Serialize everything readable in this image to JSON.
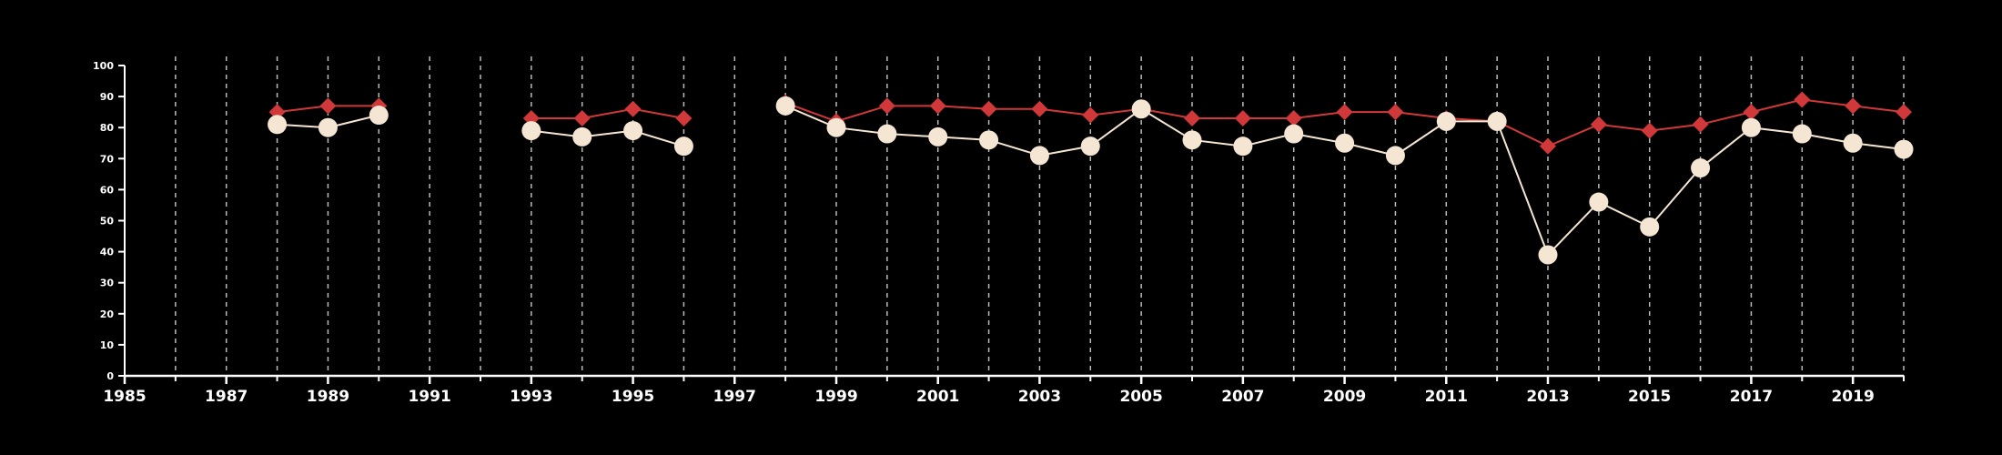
{
  "chart_data": {
    "type": "line",
    "title": "",
    "xlabel": "",
    "ylabel": "",
    "xlim": [
      1985,
      2020
    ],
    "ylim": [
      0,
      100
    ],
    "x_ticks": [
      1985,
      1987,
      1989,
      1991,
      1993,
      1995,
      1997,
      1999,
      2001,
      2003,
      2005,
      2007,
      2009,
      2011,
      2013,
      2015,
      2017,
      2019
    ],
    "y_ticks": [
      0,
      10,
      20,
      30,
      40,
      50,
      60,
      70,
      80,
      90,
      100
    ],
    "vertical_gridlines_every_year": true,
    "series": [
      {
        "marker": "diamond",
        "color": "#d0383a",
        "segments": [
          {
            "x": [
              1988,
              1989,
              1990
            ],
            "y": [
              85,
              87,
              87
            ]
          },
          {
            "x": [
              1993,
              1994,
              1995,
              1996
            ],
            "y": [
              83,
              83,
              86,
              83
            ]
          },
          {
            "x": [
              1998,
              1999,
              2000,
              2001,
              2002,
              2003,
              2004,
              2005,
              2006,
              2007,
              2008,
              2009,
              2010,
              2011,
              2012,
              2013,
              2014,
              2015,
              2016,
              2017,
              2018,
              2019,
              2020
            ],
            "y": [
              88,
              82,
              87,
              87,
              86,
              86,
              84,
              86,
              83,
              83,
              83,
              85,
              85,
              83,
              82,
              74,
              81,
              79,
              81,
              85,
              89,
              87,
              85
            ]
          }
        ]
      },
      {
        "marker": "circle",
        "color": "#f5e6d3",
        "segments": [
          {
            "x": [
              1988,
              1989,
              1990
            ],
            "y": [
              81,
              80,
              84
            ]
          },
          {
            "x": [
              1993,
              1994,
              1995,
              1996
            ],
            "y": [
              79,
              77,
              79,
              74
            ]
          },
          {
            "x": [
              1998,
              1999,
              2000,
              2001,
              2002,
              2003,
              2004,
              2005,
              2006,
              2007,
              2008,
              2009,
              2010,
              2011,
              2012,
              2013,
              2014,
              2015,
              2016,
              2017,
              2018,
              2019,
              2020
            ],
            "y": [
              87,
              80,
              78,
              77,
              76,
              71,
              74,
              86,
              76,
              74,
              78,
              75,
              71,
              82,
              82,
              39,
              56,
              48,
              67,
              80,
              78,
              75,
              73
            ]
          }
        ]
      }
    ],
    "colors": {
      "background": "#000000",
      "axis": "#ffffff",
      "grid": "#bbbbbb"
    }
  }
}
